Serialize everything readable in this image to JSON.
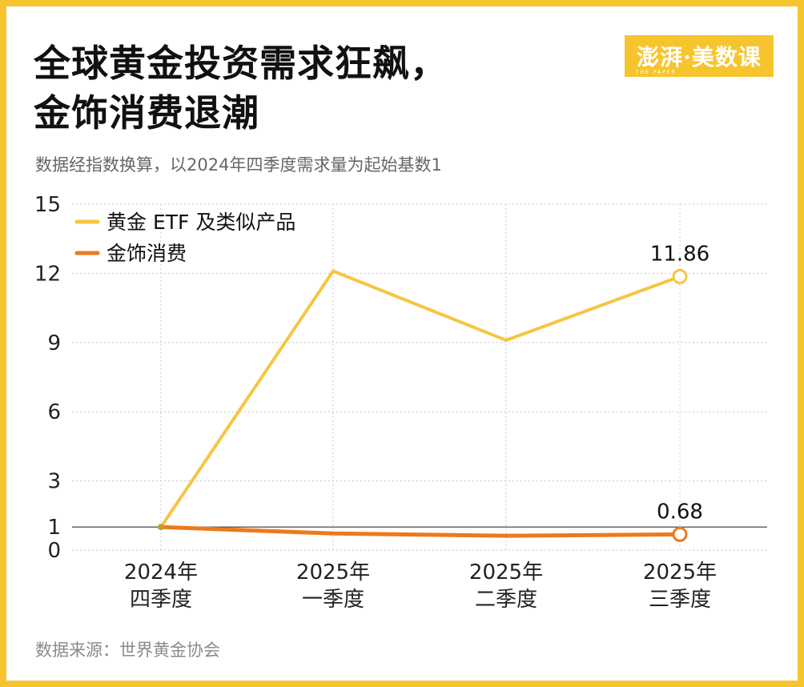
{
  "header": {
    "title_line1": "全球黄金投资需求狂飙，",
    "title_line2": "金饰消费退潮",
    "subtitle": "数据经指数换算，以2024年四季度需求量为起始基数1",
    "logo_text": "澎湃·美数课",
    "logo_sub": "THE PAPER"
  },
  "footer": {
    "source": "数据来源：世界黄金协会"
  },
  "colors": {
    "frame": "#f6c52e",
    "etf": "#f6c542",
    "jewelry": "#ec7a1c",
    "grid": "#c8c8c8"
  },
  "chart_data": {
    "type": "line",
    "categories": [
      [
        "2024年",
        "四季度"
      ],
      [
        "2025年",
        "一季度"
      ],
      [
        "2025年",
        "二季度"
      ],
      [
        "2025年",
        "三季度"
      ]
    ],
    "series": [
      {
        "name": "黄金 ETF 及类似产品",
        "values": [
          1,
          12.1,
          9.1,
          11.86
        ],
        "color": "#f6c542"
      },
      {
        "name": "金饰消费",
        "values": [
          1,
          0.72,
          0.62,
          0.68
        ],
        "color": "#ec7a1c"
      }
    ],
    "yticks": [
      0,
      1,
      3,
      6,
      9,
      12,
      15
    ],
    "ytick_labels": [
      "0",
      "1",
      "3",
      "6",
      "9",
      "12",
      "15"
    ],
    "ylim": [
      0,
      15
    ],
    "data_labels": [
      {
        "series": 0,
        "index": 3,
        "text": "11.86"
      },
      {
        "series": 1,
        "index": 3,
        "text": "0.68"
      }
    ],
    "legend_position": "top-left",
    "grid": true
  }
}
